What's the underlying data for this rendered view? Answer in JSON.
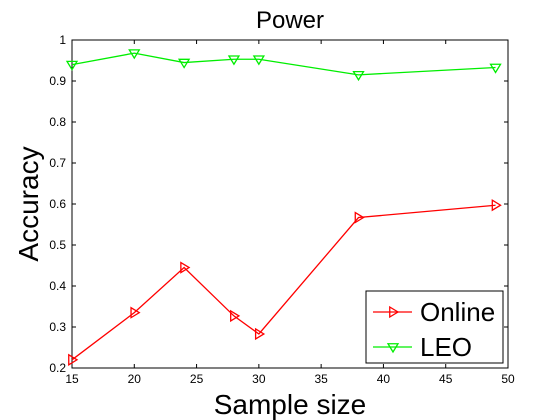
{
  "chart_data": {
    "type": "line",
    "title": "Power",
    "xlabel": "Sample size",
    "ylabel": "Accuracy",
    "xlim": [
      15,
      50
    ],
    "ylim": [
      0.2,
      1.0
    ],
    "xticks": [
      "15",
      "20",
      "25",
      "30",
      "35",
      "40",
      "45",
      "50"
    ],
    "yticks": [
      "0.2",
      "0.3",
      "0.4",
      "0.5",
      "0.6",
      "0.7",
      "0.8",
      "0.9",
      "1"
    ],
    "grid": false,
    "legend_position": "bottom-right",
    "series": [
      {
        "name": "Online",
        "color": "#ff0000",
        "marker": "triangle-right",
        "x": [
          15,
          20,
          24,
          28,
          30,
          38,
          49
        ],
        "y": [
          0.22,
          0.335,
          0.445,
          0.327,
          0.283,
          0.567,
          0.597
        ]
      },
      {
        "name": "LEO",
        "color": "#00ee00",
        "marker": "triangle-down",
        "x": [
          15,
          20,
          24,
          28,
          30,
          38,
          49
        ],
        "y": [
          0.94,
          0.968,
          0.945,
          0.953,
          0.953,
          0.915,
          0.933
        ]
      }
    ]
  }
}
